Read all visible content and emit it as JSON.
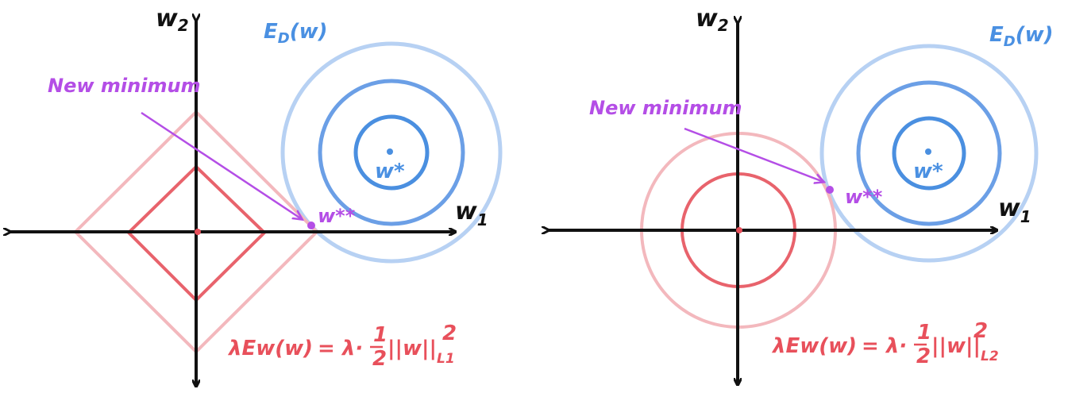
{
  "panels": [
    {
      "regularizer": "L1",
      "axis_x_label": "w",
      "axis_x_sub": "1",
      "axis_y_label": "w",
      "axis_y_sub": "2",
      "data_loss_label": "E",
      "data_loss_sub": "D",
      "data_loss_arg": "(w)",
      "optimum_label": "w*",
      "new_min_point_label": "w**",
      "annotation": "New minimum",
      "formula": {
        "lhs": "λEw(w)",
        "eq": "= λ·",
        "num": "1",
        "den": "2",
        "norm": "||w||",
        "norm_sub": "L1",
        "norm_sup": "2"
      }
    },
    {
      "regularizer": "L2",
      "axis_x_label": "w",
      "axis_x_sub": "1",
      "axis_y_label": "w",
      "axis_y_sub": "2",
      "data_loss_label": "E",
      "data_loss_sub": "D",
      "data_loss_arg": "(w)",
      "optimum_label": "w*",
      "new_min_point_label": "w**",
      "annotation": "New minimum",
      "formula": {
        "lhs": "λEw(w)",
        "eq": "= λ·",
        "num": "1",
        "den": "2",
        "norm": "||w||",
        "norm_sub": "L2",
        "norm_sup": "2"
      }
    }
  ],
  "colors": {
    "axis": "#111111",
    "contour_blue_light": "#b7d1f3",
    "contour_blue_mid": "#6b9fe6",
    "contour_blue_inner": "#4a8fe0",
    "constraint_red_light": "#f3b8bd",
    "constraint_red": "#e8636c",
    "annotation_purple": "#b44ee6"
  }
}
